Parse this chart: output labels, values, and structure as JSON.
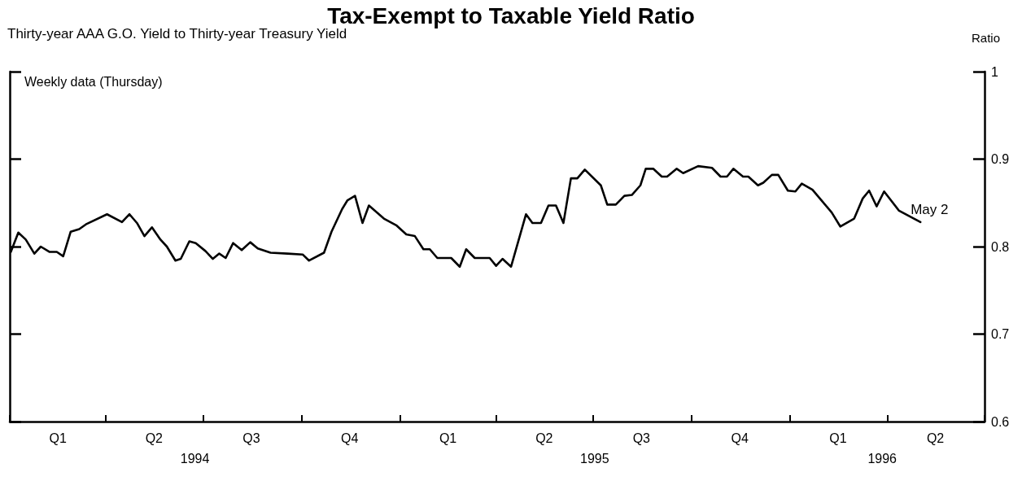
{
  "chart_data": {
    "type": "line",
    "title": "Tax-Exempt to Taxable Yield Ratio",
    "subtitle": "Thirty-year AAA G.O. Yield to Thirty-year Treasury Yield",
    "ylabel": "Ratio",
    "annotations": [
      "Weekly data (Thursday)",
      {
        "text": "May 2",
        "x": "1996-05-02",
        "y": 0.828
      },
      "1994",
      "1995",
      "1996"
    ],
    "x": [
      "1994-01-02",
      "1994-01-09",
      "1994-01-16",
      "1994-01-24",
      "1994-01-30",
      "1994-02-07",
      "1994-02-14",
      "1994-02-20",
      "1994-02-27",
      "1994-03-07",
      "1994-03-14",
      "1994-04-02",
      "1994-04-16",
      "1994-04-23",
      "1994-04-30",
      "1994-05-07",
      "1994-05-14",
      "1994-05-22",
      "1994-05-28",
      "1994-06-05",
      "1994-06-10",
      "1994-06-18",
      "1994-06-24",
      "1994-07-03",
      "1994-07-10",
      "1994-07-16",
      "1994-07-22",
      "1994-07-29",
      "1994-08-06",
      "1994-08-14",
      "1994-08-21",
      "1994-09-02",
      "1994-09-18",
      "1994-10-02",
      "1994-10-08",
      "1994-10-22",
      "1994-10-29",
      "1994-11-08",
      "1994-11-13",
      "1994-11-20",
      "1994-11-27",
      "1994-12-03",
      "1994-12-17",
      "1994-12-29",
      "1995-01-07",
      "1995-01-15",
      "1995-01-23",
      "1995-01-29",
      "1995-02-05",
      "1995-02-18",
      "1995-02-26",
      "1995-03-04",
      "1995-03-12",
      "1995-03-26",
      "1995-04-01",
      "1995-04-07",
      "1995-04-15",
      "1995-04-29",
      "1995-05-05",
      "1995-05-13",
      "1995-05-20",
      "1995-05-27",
      "1995-06-03",
      "1995-06-10",
      "1995-06-16",
      "1995-06-23",
      "1995-07-08",
      "1995-07-14",
      "1995-07-22",
      "1995-07-30",
      "1995-08-06",
      "1995-08-14",
      "1995-08-19",
      "1995-08-26",
      "1995-09-03",
      "1995-09-08",
      "1995-09-17",
      "1995-09-23",
      "1995-10-07",
      "1995-10-20",
      "1995-10-28",
      "1995-11-03",
      "1995-11-09",
      "1995-11-18",
      "1995-11-23",
      "1995-12-02",
      "1995-12-07",
      "1995-12-15",
      "1995-12-21",
      "1995-12-30",
      "1996-01-06",
      "1996-01-12",
      "1996-01-22",
      "1996-01-31",
      "1996-02-09",
      "1996-02-17",
      "1996-03-01",
      "1996-03-09",
      "1996-03-15",
      "1996-03-22",
      "1996-03-29",
      "1996-04-12",
      "1996-05-02"
    ],
    "series": [
      {
        "color": "#000000",
        "values": [
          0.794,
          0.816,
          0.808,
          0.792,
          0.8,
          0.794,
          0.794,
          0.789,
          0.817,
          0.82,
          0.826,
          0.837,
          0.828,
          0.837,
          0.827,
          0.812,
          0.822,
          0.808,
          0.8,
          0.784,
          0.786,
          0.806,
          0.804,
          0.795,
          0.786,
          0.792,
          0.787,
          0.804,
          0.796,
          0.805,
          0.798,
          0.793,
          0.792,
          0.791,
          0.784,
          0.793,
          0.817,
          0.843,
          0.853,
          0.858,
          0.827,
          0.847,
          0.832,
          0.824,
          0.814,
          0.812,
          0.797,
          0.797,
          0.787,
          0.787,
          0.777,
          0.797,
          0.787,
          0.787,
          0.778,
          0.786,
          0.777,
          0.837,
          0.827,
          0.827,
          0.847,
          0.847,
          0.827,
          0.878,
          0.878,
          0.888,
          0.87,
          0.848,
          0.848,
          0.858,
          0.859,
          0.87,
          0.889,
          0.889,
          0.88,
          0.88,
          0.889,
          0.884,
          0.892,
          0.89,
          0.88,
          0.88,
          0.889,
          0.88,
          0.88,
          0.87,
          0.873,
          0.882,
          0.882,
          0.864,
          0.863,
          0.872,
          0.865,
          0.852,
          0.839,
          0.823,
          0.832,
          0.855,
          0.864,
          0.846,
          0.863,
          0.841,
          0.828
        ]
      }
    ],
    "xlim": [
      "1994-01-01",
      "1996-07-01"
    ],
    "xticks": [
      {
        "value": "1994-01-01",
        "label": null
      },
      {
        "value": "1994-02-15",
        "label": "Q1"
      },
      {
        "value": "1994-04-01",
        "label": null
      },
      {
        "value": "1994-05-16",
        "label": "Q2"
      },
      {
        "value": "1994-07-01",
        "label": null
      },
      {
        "value": "1994-08-15",
        "label": "Q3"
      },
      {
        "value": "1994-10-01",
        "label": null
      },
      {
        "value": "1994-11-15",
        "label": "Q4"
      },
      {
        "value": "1995-01-01",
        "label": null
      },
      {
        "value": "1995-02-15",
        "label": "Q1"
      },
      {
        "value": "1995-04-01",
        "label": null
      },
      {
        "value": "1995-05-16",
        "label": "Q2"
      },
      {
        "value": "1995-07-01",
        "label": null
      },
      {
        "value": "1995-08-15",
        "label": "Q3"
      },
      {
        "value": "1995-10-01",
        "label": null
      },
      {
        "value": "1995-11-15",
        "label": "Q4"
      },
      {
        "value": "1996-01-01",
        "label": null
      },
      {
        "value": "1996-02-15",
        "label": "Q1"
      },
      {
        "value": "1996-04-01",
        "label": null
      },
      {
        "value": "1996-05-16",
        "label": "Q2"
      },
      {
        "value": "1996-07-01",
        "label": null
      }
    ],
    "ylim": [
      0.6,
      1
    ],
    "yticks": [
      0.6,
      0.7,
      0.8,
      0.9,
      1
    ],
    "marker": "none",
    "line_style": "solid",
    "grid": false
  }
}
